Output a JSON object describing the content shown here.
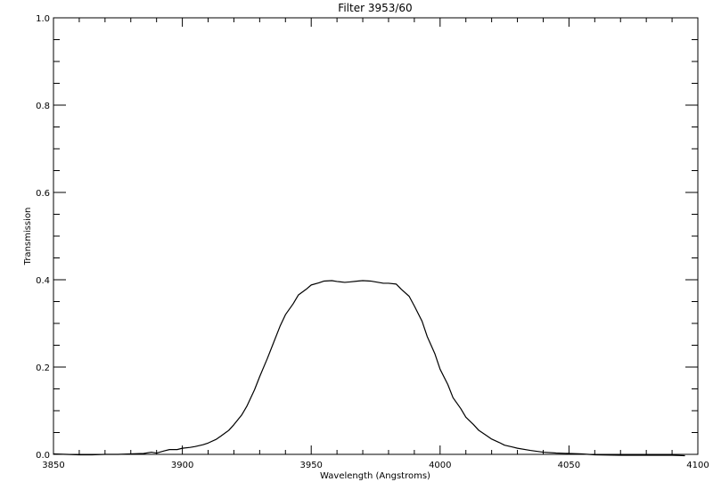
{
  "chart_data": {
    "type": "line",
    "title": "Filter 3953/60",
    "xlabel": "Wavelength (Angstroms)",
    "ylabel": "Transmission",
    "xlim": [
      3850,
      4100
    ],
    "ylim": [
      0,
      1.0
    ],
    "x_ticks": [
      3850,
      3900,
      3950,
      4000,
      4050,
      4100
    ],
    "x_tick_labels": [
      "3850",
      "3900",
      "3950",
      "4000",
      "4050",
      "4100"
    ],
    "y_ticks": [
      0,
      0.2,
      0.4,
      0.6,
      0.8,
      1.0
    ],
    "y_tick_labels": [
      "0.0",
      "0.2",
      "0.4",
      "0.6",
      "0.8",
      "1.0"
    ],
    "grid": false,
    "series": [
      {
        "color": "#000000",
        "x": [
          3850,
          3855,
          3860,
          3865,
          3870,
          3875,
          3880,
          3885,
          3888,
          3890,
          3893,
          3895,
          3898,
          3900,
          3903,
          3905,
          3908,
          3910,
          3913,
          3915,
          3918,
          3920,
          3923,
          3925,
          3928,
          3930,
          3933,
          3935,
          3938,
          3940,
          3943,
          3945,
          3948,
          3950,
          3953,
          3955,
          3958,
          3960,
          3963,
          3965,
          3968,
          3970,
          3973,
          3975,
          3978,
          3980,
          3983,
          3985,
          3988,
          3990,
          3993,
          3995,
          3998,
          4000,
          4003,
          4005,
          4008,
          4010,
          4013,
          4015,
          4018,
          4020,
          4023,
          4025,
          4028,
          4030,
          4035,
          4040,
          4045,
          4050,
          4055,
          4060,
          4070,
          4080,
          4090,
          4095
        ],
        "y": [
          0.001,
          0.0,
          -0.001,
          -0.001,
          0.0,
          0.0,
          0.001,
          0.002,
          0.005,
          0.003,
          0.008,
          0.011,
          0.011,
          0.014,
          0.016,
          0.018,
          0.022,
          0.026,
          0.034,
          0.042,
          0.055,
          0.068,
          0.09,
          0.11,
          0.148,
          0.178,
          0.22,
          0.25,
          0.295,
          0.32,
          0.345,
          0.365,
          0.378,
          0.388,
          0.393,
          0.397,
          0.398,
          0.396,
          0.394,
          0.395,
          0.397,
          0.398,
          0.397,
          0.395,
          0.392,
          0.392,
          0.39,
          0.378,
          0.362,
          0.34,
          0.305,
          0.27,
          0.23,
          0.195,
          0.16,
          0.13,
          0.105,
          0.085,
          0.068,
          0.055,
          0.043,
          0.035,
          0.027,
          0.021,
          0.017,
          0.014,
          0.009,
          0.005,
          0.003,
          0.002,
          0.001,
          -0.001,
          -0.002,
          -0.002,
          -0.002,
          -0.003
        ]
      }
    ]
  }
}
